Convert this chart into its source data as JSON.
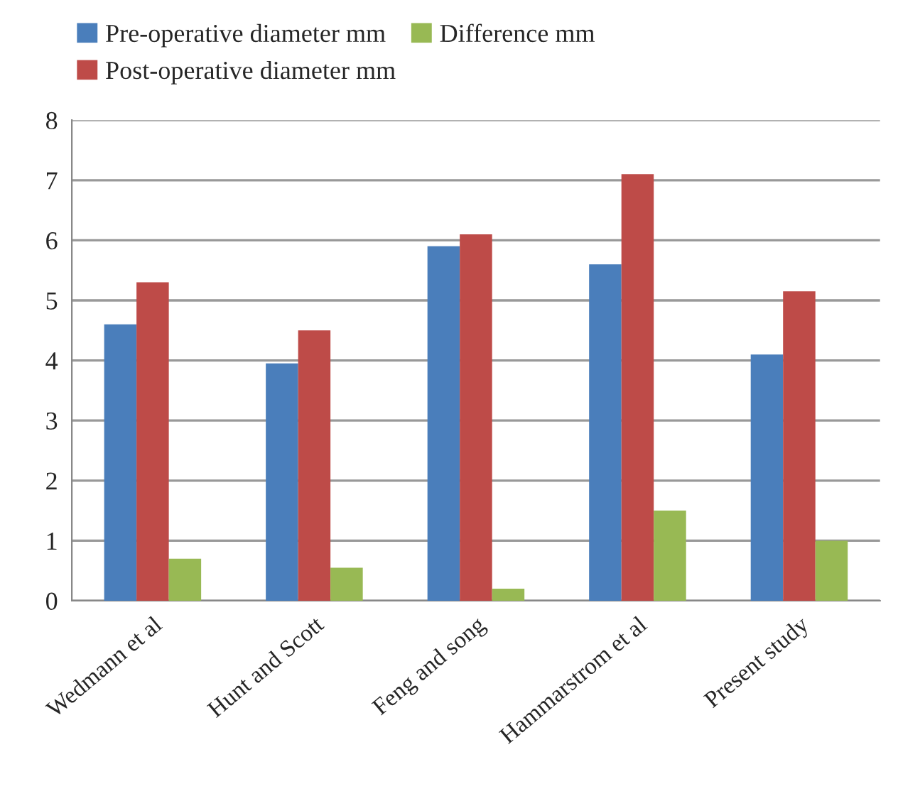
{
  "chart_data": {
    "type": "bar",
    "categories": [
      "Wedmann et al",
      "Hunt and Scott",
      "Feng and song",
      "Hammarstrom et al",
      "Present study"
    ],
    "series": [
      {
        "name": "Pre-operative diameter mm",
        "color": "#4a7ebb",
        "values": [
          4.6,
          3.95,
          5.9,
          5.6,
          4.1
        ]
      },
      {
        "name": "Post-operative diameter mm",
        "color": "#be4b48",
        "values": [
          5.3,
          4.5,
          6.1,
          7.1,
          5.15
        ]
      },
      {
        "name": "Difference mm",
        "color": "#98b954",
        "values": [
          0.7,
          0.55,
          0.2,
          1.5,
          1.0
        ]
      }
    ],
    "ylim": [
      0,
      8
    ],
    "yticks": [
      0,
      1,
      2,
      3,
      4,
      5,
      6,
      7,
      8
    ],
    "grid": "y",
    "legend": "top"
  }
}
